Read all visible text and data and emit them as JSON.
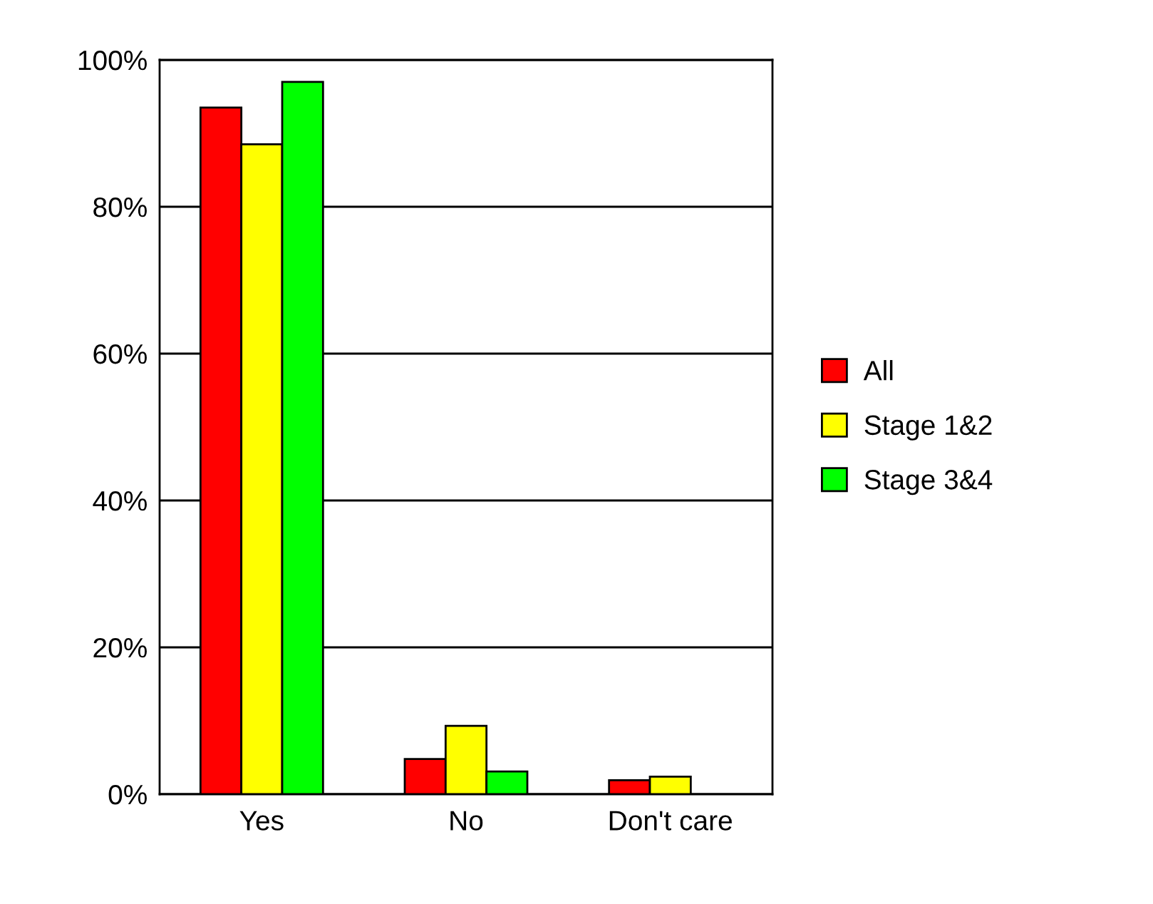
{
  "chart_data": {
    "type": "bar",
    "categories": [
      "Yes",
      "No",
      "Don't care"
    ],
    "series": [
      {
        "name": "All",
        "color": "#ff0000",
        "values": [
          93.5,
          4.8,
          1.9
        ]
      },
      {
        "name": "Stage 1&2",
        "color": "#ffff00",
        "values": [
          88.5,
          9.3,
          2.4
        ]
      },
      {
        "name": "Stage 3&4",
        "color": "#00ff00",
        "values": [
          97,
          3.1,
          null
        ]
      }
    ],
    "ylim": [
      0,
      100
    ],
    "yticks": [
      {
        "value": 0,
        "label": "0%"
      },
      {
        "value": 20,
        "label": "20%"
      },
      {
        "value": 40,
        "label": "40%"
      },
      {
        "value": 60,
        "label": "60%"
      },
      {
        "value": 80,
        "label": "80%"
      },
      {
        "value": 100,
        "label": "100%"
      }
    ],
    "grid": "y",
    "legend": "right"
  }
}
